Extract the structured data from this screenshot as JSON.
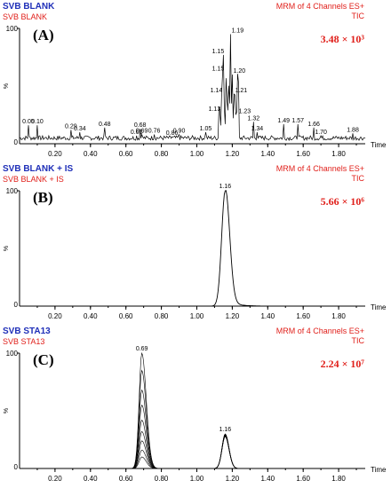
{
  "chart_data": [
    {
      "type": "line",
      "label": "(A)",
      "title": "SVB BLANK",
      "subtitle": "SVB BLANK",
      "mrm": "MRM of 4 Channels ES+",
      "tic": "TIC",
      "intensity": "3.48 × 10³",
      "xlabel": "Time",
      "ylabel": "%",
      "xlim": [
        0,
        1.95
      ],
      "ylim": [
        0,
        100
      ],
      "xticks": [
        "0.20",
        "0.40",
        "0.60",
        "0.80",
        "1.00",
        "1.20",
        "1.40",
        "1.60",
        "1.80"
      ],
      "peaks": [
        {
          "x": 0.05,
          "y": 16,
          "label": "0.05"
        },
        {
          "x": 0.1,
          "y": 16,
          "label": "0.10"
        },
        {
          "x": 0.29,
          "y": 12,
          "label": "0.29"
        },
        {
          "x": 0.34,
          "y": 10,
          "label": "0.34"
        },
        {
          "x": 0.48,
          "y": 14,
          "label": "0.48"
        },
        {
          "x": 0.66,
          "y": 7,
          "label": "0.66"
        },
        {
          "x": 0.68,
          "y": 13,
          "label": "0.68"
        },
        {
          "x": 0.69,
          "y": 8,
          "label": "0.69"
        },
        {
          "x": 0.76,
          "y": 8,
          "label": "0.76"
        },
        {
          "x": 0.86,
          "y": 6,
          "label": "0.86"
        },
        {
          "x": 0.9,
          "y": 8,
          "label": "0.90"
        },
        {
          "x": 1.05,
          "y": 10,
          "label": "1.05"
        },
        {
          "x": 1.13,
          "y": 27,
          "label": "1.13"
        },
        {
          "x": 1.14,
          "y": 43,
          "label": "1.14"
        },
        {
          "x": 1.15,
          "y": 77,
          "label": "1.15"
        },
        {
          "x": 1.15,
          "y": 62,
          "label": "1.15"
        },
        {
          "x": 1.19,
          "y": 95,
          "label": "1.19"
        },
        {
          "x": 1.2,
          "y": 60,
          "label": "1.20"
        },
        {
          "x": 1.21,
          "y": 43,
          "label": "1.21"
        },
        {
          "x": 1.23,
          "y": 25,
          "label": "1.23"
        },
        {
          "x": 1.32,
          "y": 19,
          "label": "1.32"
        },
        {
          "x": 1.34,
          "y": 10,
          "label": "1.34"
        },
        {
          "x": 1.49,
          "y": 17,
          "label": "1.49"
        },
        {
          "x": 1.57,
          "y": 17,
          "label": "1.57"
        },
        {
          "x": 1.66,
          "y": 14,
          "label": "1.66"
        },
        {
          "x": 1.7,
          "y": 7,
          "label": "1.70"
        },
        {
          "x": 1.88,
          "y": 9,
          "label": "1.88"
        }
      ]
    },
    {
      "type": "line",
      "label": "(B)",
      "title": "SVB BLANK + IS",
      "subtitle": "SVB BLANK + IS",
      "mrm": "MRM of 4 Channels ES+",
      "tic": "TIC",
      "intensity": "5.66 × 10⁶",
      "xlabel": "Time",
      "ylabel": "%",
      "xlim": [
        0,
        1.95
      ],
      "ylim": [
        0,
        100
      ],
      "xticks": [
        "0.20",
        "0.40",
        "0.60",
        "0.80",
        "1.00",
        "1.20",
        "1.40",
        "1.60",
        "1.80"
      ],
      "peaks": [
        {
          "x": 1.16,
          "y": 100,
          "label": "1.16"
        }
      ]
    },
    {
      "type": "line",
      "label": "(C)",
      "title": "SVB STA13",
      "subtitle": "SVB STA13",
      "mrm": "MRM of 4 Channels ES+",
      "tic": "TIC",
      "intensity": "2.24 × 10⁷",
      "xlabel": "Time",
      "ylabel": "%",
      "xlim": [
        0,
        1.95
      ],
      "ylim": [
        0,
        100
      ],
      "xticks": [
        "0.20",
        "0.40",
        "0.60",
        "0.80",
        "1.00",
        "1.20",
        "1.40",
        "1.60",
        "1.80"
      ],
      "peaks": [
        {
          "x": 0.69,
          "y": 100,
          "label": "0.69"
        },
        {
          "x": 1.16,
          "y": 30,
          "label": "1.16"
        }
      ],
      "overlay_heights": [
        100,
        85,
        68,
        55,
        42,
        32,
        24,
        16,
        10
      ]
    }
  ]
}
